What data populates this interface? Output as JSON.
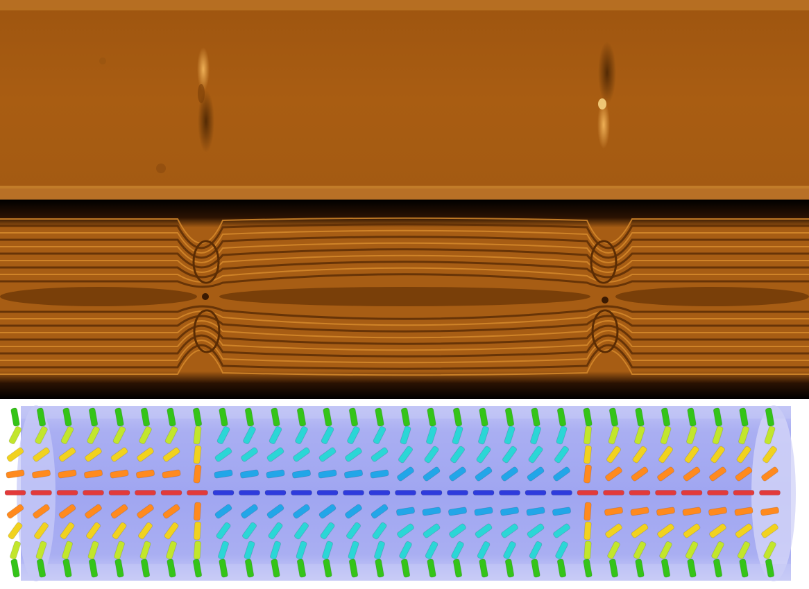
{
  "figure": {
    "panels": [
      {
        "id": "micrograph-brightfield",
        "kind": "optical micrograph"
      },
      {
        "id": "micrograph-crossed-polarizers",
        "kind": "optical micrograph, interference fringes"
      },
      {
        "id": "director-field-schematic",
        "kind": "3D rendering of rod-like molecules in a capillary"
      }
    ],
    "colors": {
      "micrograph_base": "#a95d12",
      "micrograph_light": "#c8791e",
      "micrograph_dark": "#6a3506",
      "capillary_fill": "#9aa0f0",
      "capillary_outline": "#b6b9f3",
      "rod_palette": [
        "#e23a3a",
        "#ff8a1e",
        "#f1d21f",
        "#c2e62c",
        "#34c418",
        "#2bd6d6",
        "#22a6e8",
        "#2e3bdc"
      ]
    },
    "defects": {
      "count": 2,
      "type": "point defects in nematic capillary"
    }
  }
}
